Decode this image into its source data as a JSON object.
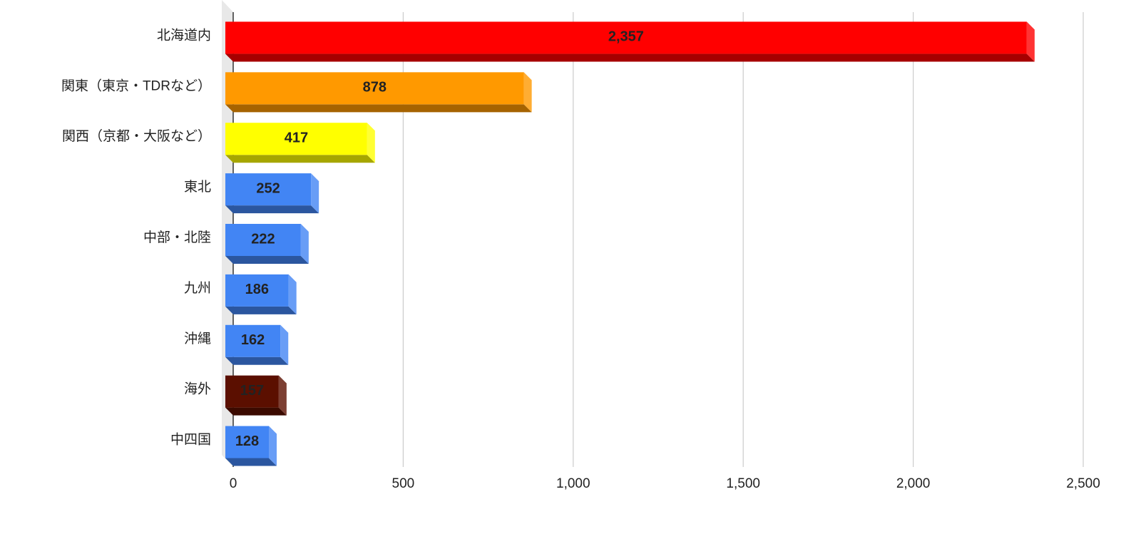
{
  "chart_data": {
    "type": "bar",
    "orientation": "horizontal",
    "categories": [
      "北海道内",
      "関東（東京・TDRなど）",
      "関西（京都・大阪など）",
      "東北",
      "中部・北陸",
      "九州",
      "沖縄",
      "海外",
      "中四国"
    ],
    "values": [
      2357,
      878,
      417,
      252,
      222,
      186,
      162,
      157,
      128
    ],
    "value_labels": [
      "2,357",
      "878",
      "417",
      "252",
      "222",
      "186",
      "162",
      "157",
      "128"
    ],
    "colors": [
      "#ff0000",
      "#ff9900",
      "#ffff00",
      "#4285f4",
      "#4285f4",
      "#4285f4",
      "#4285f4",
      "#5b0f00",
      "#4285f4"
    ],
    "xlim": [
      0,
      2500
    ],
    "xticks": [
      0,
      500,
      {
        "value": 1000,
        "label": "1,000"
      },
      {
        "value": 1500,
        "label": "1,500"
      },
      {
        "value": 2000,
        "label": "2,000"
      },
      {
        "value": 2500,
        "label": "2,500"
      }
    ],
    "grid": true
  }
}
